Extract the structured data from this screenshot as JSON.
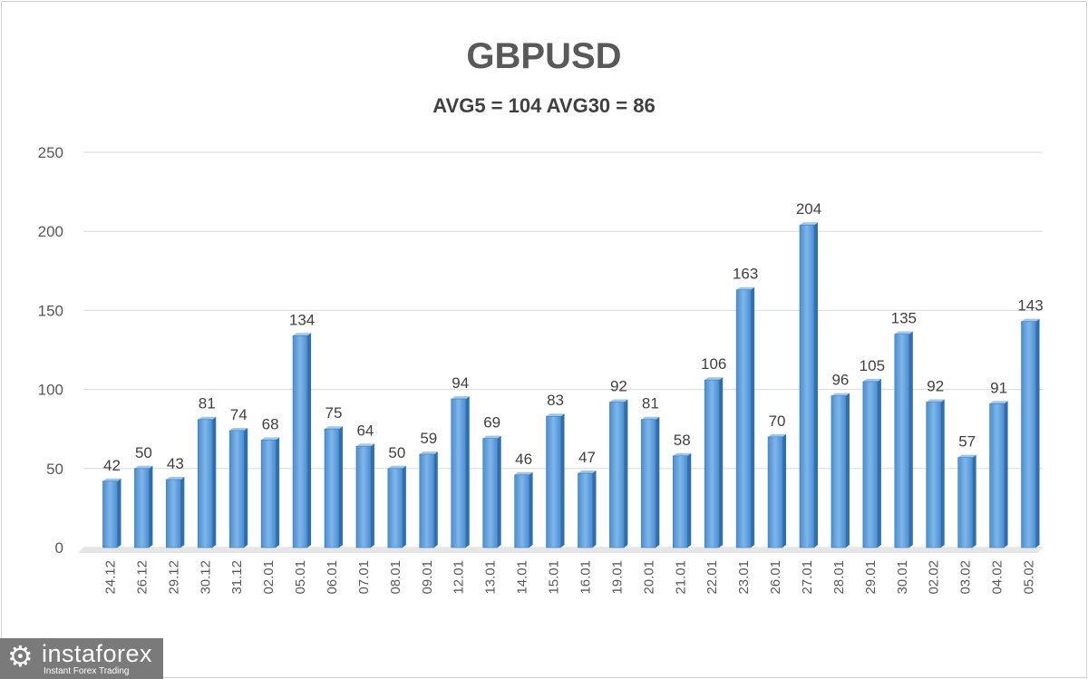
{
  "chart_data": {
    "type": "bar",
    "title": "GBPUSD",
    "subtitle": "AVG5 = 104 AVG30 = 86",
    "categories": [
      "24.12",
      "26.12",
      "29.12",
      "30.12",
      "31.12",
      "02.01",
      "05.01",
      "06.01",
      "07.01",
      "08.01",
      "09.01",
      "12.01",
      "13.01",
      "14.01",
      "15.01",
      "16.01",
      "19.01",
      "20.01",
      "21.01",
      "22.01",
      "23.01",
      "26.01",
      "27.01",
      "28.01",
      "29.01",
      "30.01",
      "02.02",
      "03.02",
      "04.02",
      "05.02"
    ],
    "values": [
      42,
      50,
      43,
      81,
      74,
      68,
      134,
      75,
      64,
      50,
      59,
      94,
      69,
      46,
      83,
      47,
      92,
      81,
      58,
      106,
      163,
      70,
      204,
      96,
      105,
      135,
      92,
      57,
      91,
      143
    ],
    "ylim": [
      0,
      250
    ],
    "yticks": [
      0,
      50,
      100,
      150,
      200,
      250
    ],
    "grid": true,
    "legend": "none",
    "bar_color": "#5b9bd5",
    "data_labels": true
  },
  "logo": {
    "name": "instaforex",
    "tagline": "Instant Forex Trading"
  }
}
